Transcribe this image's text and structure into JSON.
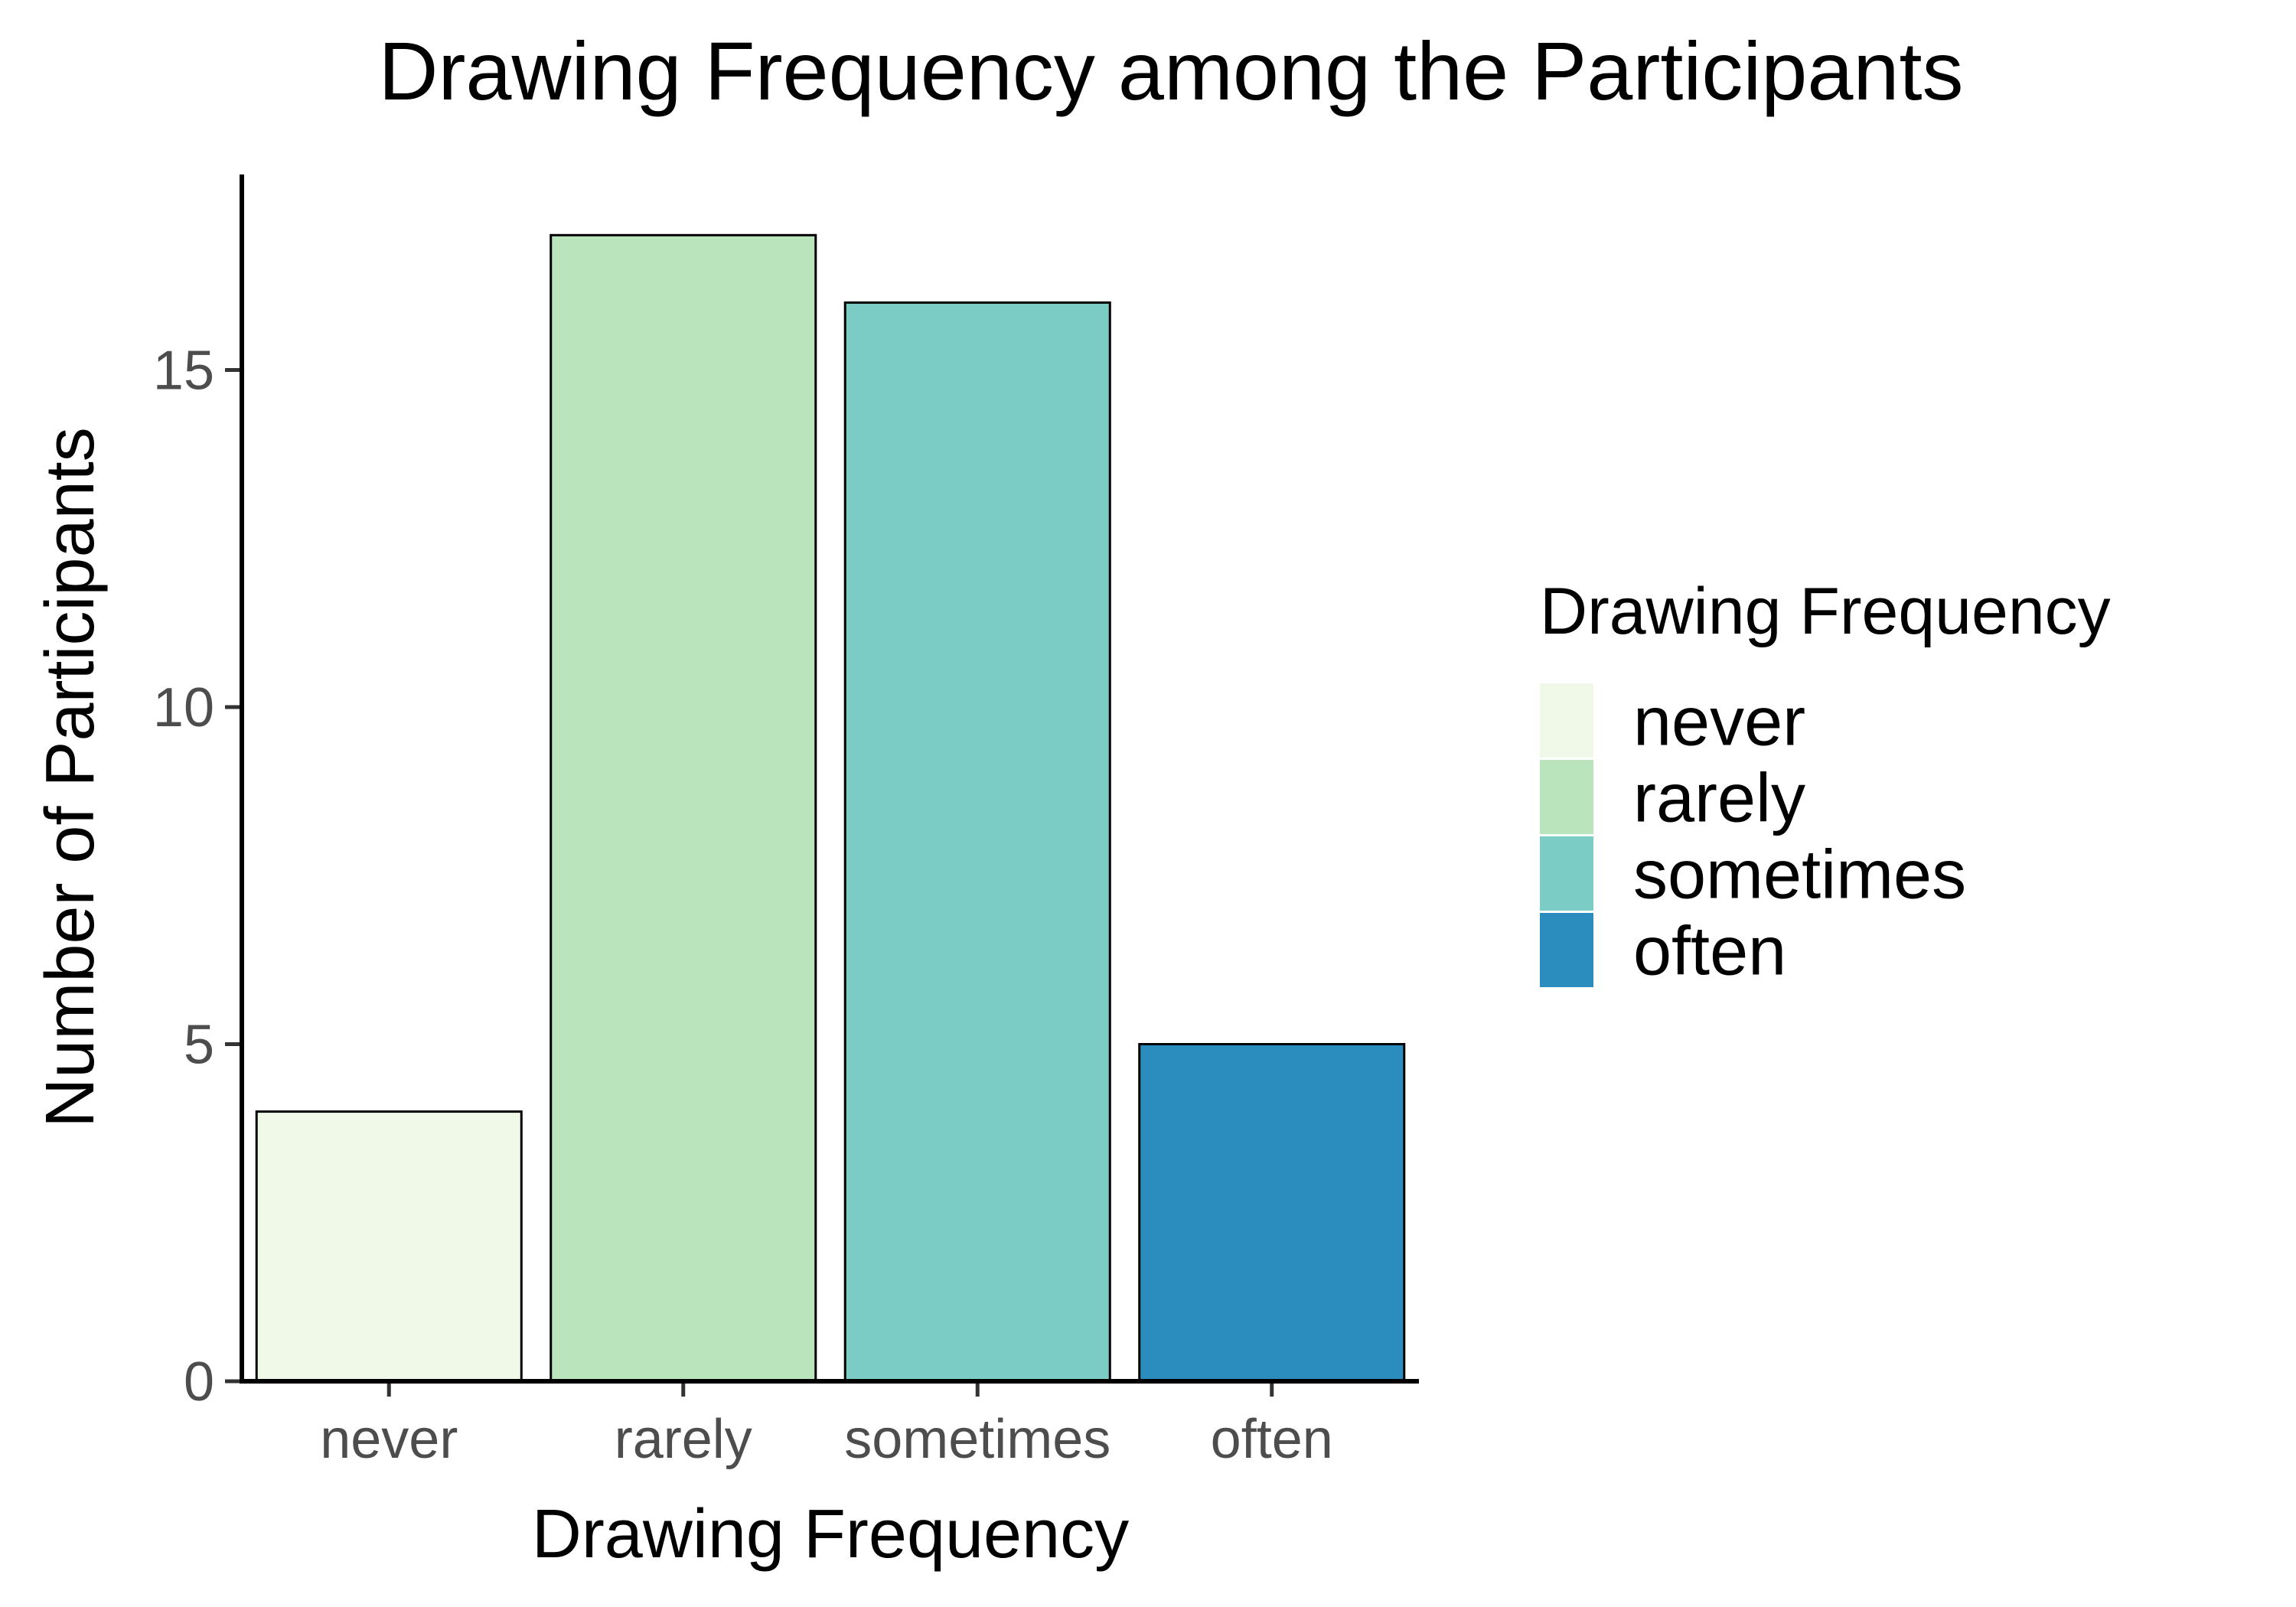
{
  "chart_data": {
    "type": "bar",
    "title": "Drawing Frequency among the Participants",
    "xlabel": "Drawing Frequency",
    "ylabel": "Number of Participants",
    "categories": [
      "never",
      "rarely",
      "sometimes",
      "often"
    ],
    "values": [
      4,
      17,
      16,
      5
    ],
    "colors": [
      "#f0f9e8",
      "#bae4bc",
      "#7bccc4",
      "#2b8cbe"
    ],
    "ylim": [
      0,
      18
    ],
    "yticks": [
      0,
      5,
      10,
      15
    ],
    "grid": false,
    "legend": {
      "title": "Drawing Frequency",
      "placement": "right",
      "entries": [
        "never",
        "rarely",
        "sometimes",
        "often"
      ]
    }
  }
}
